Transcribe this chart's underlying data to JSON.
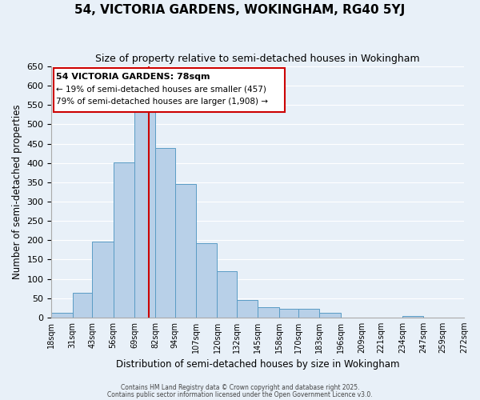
{
  "title": "54, VICTORIA GARDENS, WOKINGHAM, RG40 5YJ",
  "subtitle": "Size of property relative to semi-detached houses in Wokingham",
  "xlabel": "Distribution of semi-detached houses by size in Wokingham",
  "ylabel": "Number of semi-detached properties",
  "bar_color": "#b8d0e8",
  "bar_edge_color": "#5a9cc5",
  "bg_color": "#e8f0f8",
  "grid_color": "#ffffff",
  "annotation_box_color": "#cc0000",
  "vline_color": "#cc0000",
  "vline_x": 78,
  "annotation_title": "54 VICTORIA GARDENS: 78sqm",
  "annotation_line2": "← 19% of semi-detached houses are smaller (457)",
  "annotation_line3": "79% of semi-detached houses are larger (1,908) →",
  "footer1": "Contains HM Land Registry data © Crown copyright and database right 2025.",
  "footer2": "Contains public sector information licensed under the Open Government Licence v3.0.",
  "bin_edges": [
    18,
    31,
    43,
    56,
    69,
    82,
    94,
    107,
    120,
    132,
    145,
    158,
    170,
    183,
    196,
    209,
    221,
    234,
    247,
    259,
    272
  ],
  "bar_heights": [
    13,
    63,
    197,
    402,
    537,
    438,
    345,
    192,
    119,
    46,
    27,
    22,
    22,
    11,
    0,
    0,
    0,
    4,
    0,
    0
  ],
  "ylim": [
    0,
    650
  ],
  "yticks": [
    0,
    50,
    100,
    150,
    200,
    250,
    300,
    350,
    400,
    450,
    500,
    550,
    600,
    650
  ]
}
